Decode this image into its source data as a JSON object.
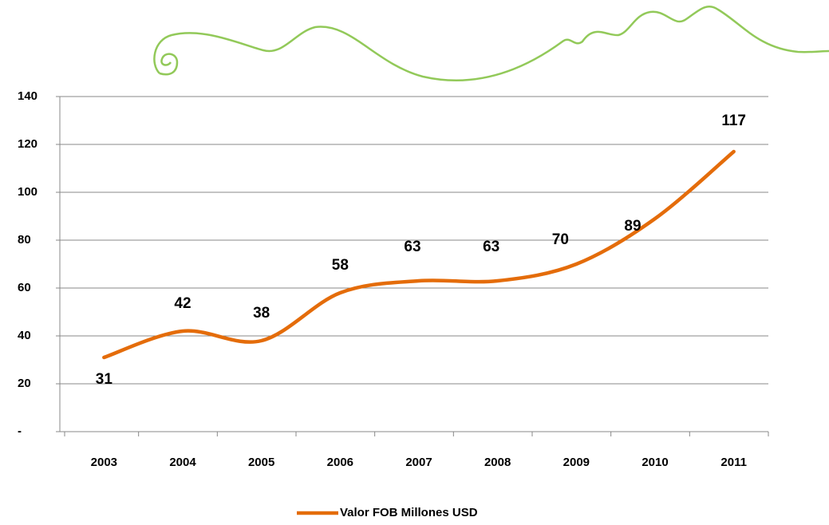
{
  "chart_data": {
    "type": "line",
    "categories": [
      "2003",
      "2004",
      "2005",
      "2006",
      "2007",
      "2008",
      "2009",
      "2010",
      "2011"
    ],
    "series": [
      {
        "name": "Valor FOB Millones USD",
        "color": "#e46c0a",
        "values": [
          31,
          42,
          38,
          58,
          63,
          63,
          70,
          89,
          117
        ]
      }
    ],
    "ylim": [
      0,
      140
    ],
    "yticks": [
      {
        "value": 0,
        "label": "-"
      },
      20,
      40,
      60,
      80,
      100,
      120,
      140
    ],
    "grid": true,
    "legend": "bottom"
  }
}
